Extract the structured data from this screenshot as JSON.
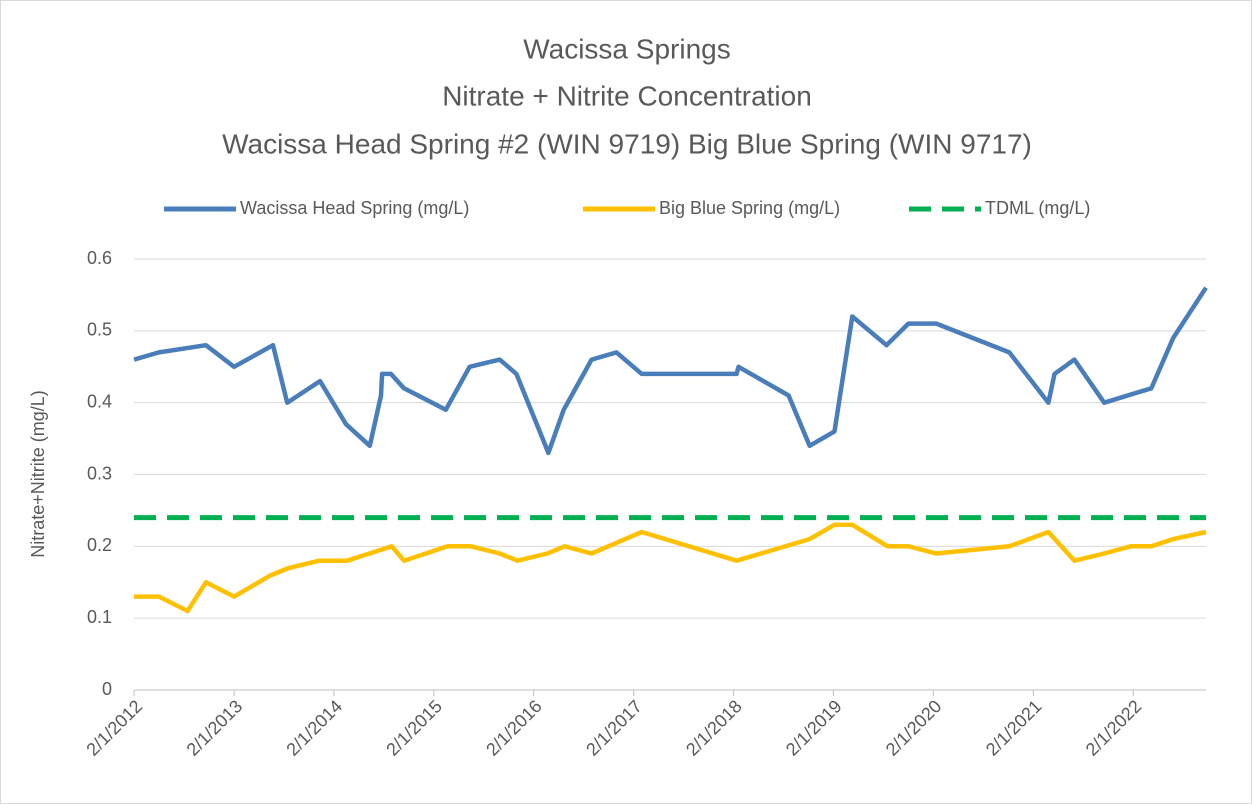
{
  "chart_data": {
    "type": "line",
    "title": [
      "Wacissa Springs",
      "Nitrate + Nitrite Concentration",
      "Wacissa Head Spring #2 (WIN 9719) Big Blue Spring (WIN 9717)"
    ],
    "y_label": "Nitrate+Nitrite (mg/L)",
    "xlim": [
      "2012-02-01",
      "2022-10-25"
    ],
    "xticks": [
      {
        "value": "2012-02-01",
        "label": "2/1/2012"
      },
      {
        "value": "2013-02-01",
        "label": "2/1/2013"
      },
      {
        "value": "2014-02-01",
        "label": "2/1/2014"
      },
      {
        "value": "2015-02-01",
        "label": "2/1/2015"
      },
      {
        "value": "2016-02-01",
        "label": "2/1/2016"
      },
      {
        "value": "2017-02-01",
        "label": "2/1/2017"
      },
      {
        "value": "2018-02-01",
        "label": "2/1/2018"
      },
      {
        "value": "2019-02-01",
        "label": "2/1/2019"
      },
      {
        "value": "2020-02-01",
        "label": "2/1/2020"
      },
      {
        "value": "2021-02-01",
        "label": "2/1/2021"
      },
      {
        "value": "2022-02-01",
        "label": "2/1/2022"
      }
    ],
    "ylim": [
      0,
      0.6
    ],
    "yticks": [
      0,
      0.1,
      0.2,
      0.3,
      0.4,
      0.5,
      0.6
    ],
    "grid": true,
    "legend": "top",
    "series": [
      {
        "name": "Wacissa Head Spring (mg/L)",
        "color": "#4a7ebb",
        "dash": false,
        "x": [
          "2012-02-01",
          "2012-05-02",
          "2012-10-21",
          "2013-02-01",
          "2013-06-23",
          "2013-08-14",
          "2013-12-12",
          "2014-03-17",
          "2014-06-12",
          "2014-07-23",
          "2014-07-27",
          "2014-08-28",
          "2014-10-15",
          "2015-03-17",
          "2015-06-12",
          "2015-09-30",
          "2015-11-30",
          "2016-03-26",
          "2016-05-21",
          "2016-08-31",
          "2016-11-30",
          "2017-03-02",
          "2018-02-12",
          "2018-02-19",
          "2018-08-21",
          "2018-11-06",
          "2019-02-05",
          "2019-04-11",
          "2019-08-14",
          "2019-11-02",
          "2020-02-12",
          "2020-11-05",
          "2021-03-28",
          "2021-04-19",
          "2021-07-01",
          "2021-10-18",
          "2022-04-08",
          "2022-06-27",
          "2022-10-25"
        ],
        "values": [
          0.46,
          0.47,
          0.48,
          0.45,
          0.48,
          0.4,
          0.43,
          0.37,
          0.34,
          0.41,
          0.44,
          0.44,
          0.42,
          0.39,
          0.45,
          0.46,
          0.44,
          0.33,
          0.39,
          0.46,
          0.47,
          0.44,
          0.44,
          0.45,
          0.41,
          0.34,
          0.36,
          0.52,
          0.48,
          0.51,
          0.51,
          0.47,
          0.4,
          0.44,
          0.46,
          0.4,
          0.42,
          0.49,
          0.56
        ]
      },
      {
        "name": "Big Blue Spring (mg/L)",
        "color": "#ffc000",
        "dash": false,
        "x": [
          "2012-02-01",
          "2012-05-02",
          "2012-08-15",
          "2012-10-21",
          "2013-02-01",
          "2013-06-16",
          "2013-08-21",
          "2013-12-09",
          "2014-03-21",
          "2014-08-31",
          "2014-10-15",
          "2015-03-24",
          "2015-06-16",
          "2015-09-30",
          "2015-12-04",
          "2016-03-22",
          "2016-05-25",
          "2016-08-31",
          "2017-03-02",
          "2018-02-12",
          "2018-11-06",
          "2019-02-05",
          "2019-04-11",
          "2019-08-18",
          "2019-11-02",
          "2020-02-12",
          "2020-11-05",
          "2021-03-28",
          "2021-07-01",
          "2021-10-18",
          "2022-01-23",
          "2022-04-08",
          "2022-06-27",
          "2022-10-25"
        ],
        "values": [
          0.13,
          0.13,
          0.11,
          0.15,
          0.13,
          0.16,
          0.17,
          0.18,
          0.18,
          0.2,
          0.18,
          0.2,
          0.2,
          0.19,
          0.18,
          0.19,
          0.2,
          0.19,
          0.22,
          0.18,
          0.21,
          0.23,
          0.23,
          0.2,
          0.2,
          0.19,
          0.2,
          0.22,
          0.18,
          0.19,
          0.2,
          0.2,
          0.21,
          0.22
        ]
      },
      {
        "name": "TDML (mg/L)",
        "color": "#00b050",
        "dash": true,
        "x": [
          "2012-02-01",
          "2022-10-25"
        ],
        "values": [
          0.24,
          0.24
        ]
      }
    ]
  }
}
